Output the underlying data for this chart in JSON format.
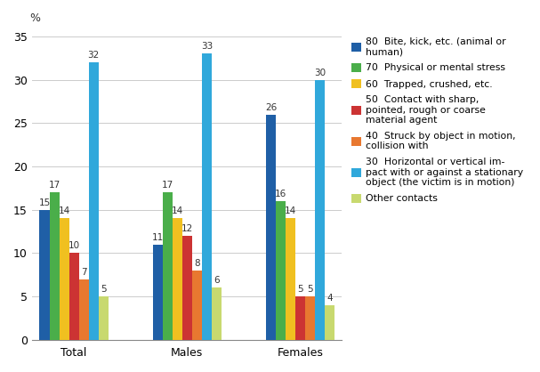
{
  "categories": [
    "Total",
    "Males",
    "Females"
  ],
  "series": [
    {
      "label": "80  Bite, kick, etc. (animal or\nhuman)",
      "color": "#1f5fa6",
      "values": [
        15,
        11,
        26
      ]
    },
    {
      "label": "70  Physical or mental stress",
      "color": "#4aae4a",
      "values": [
        17,
        17,
        16
      ]
    },
    {
      "label": "60  Trapped, crushed, etc.",
      "color": "#f0c020",
      "values": [
        14,
        14,
        14
      ]
    },
    {
      "label": "50  Contact with sharp,\npointed, rough or coarse\nmaterial agent",
      "color": "#cc3333",
      "values": [
        10,
        12,
        5
      ]
    },
    {
      "label": "40  Struck by object in motion,\ncollision with",
      "color": "#e87830",
      "values": [
        7,
        8,
        5
      ]
    },
    {
      "label": "30  Horizontal or vertical im-\npact with or against a stationary\nobject (the victim is in motion)",
      "color": "#30a8db",
      "values": [
        32,
        33,
        30
      ]
    },
    {
      "label": "Other contacts",
      "color": "#c8d96f",
      "values": [
        5,
        6,
        4
      ]
    }
  ],
  "ylabel": "%",
  "ylim": [
    0,
    35
  ],
  "yticks": [
    0,
    5,
    10,
    15,
    20,
    25,
    30,
    35
  ],
  "bar_width": 0.13,
  "group_centers": [
    1.0,
    2.5,
    4.0
  ],
  "figsize": [
    6.07,
    4.18
  ],
  "dpi": 100,
  "legend_fontsize": 7.8,
  "tick_label_fontsize": 9,
  "value_fontsize": 7.5,
  "background_color": "#ffffff"
}
